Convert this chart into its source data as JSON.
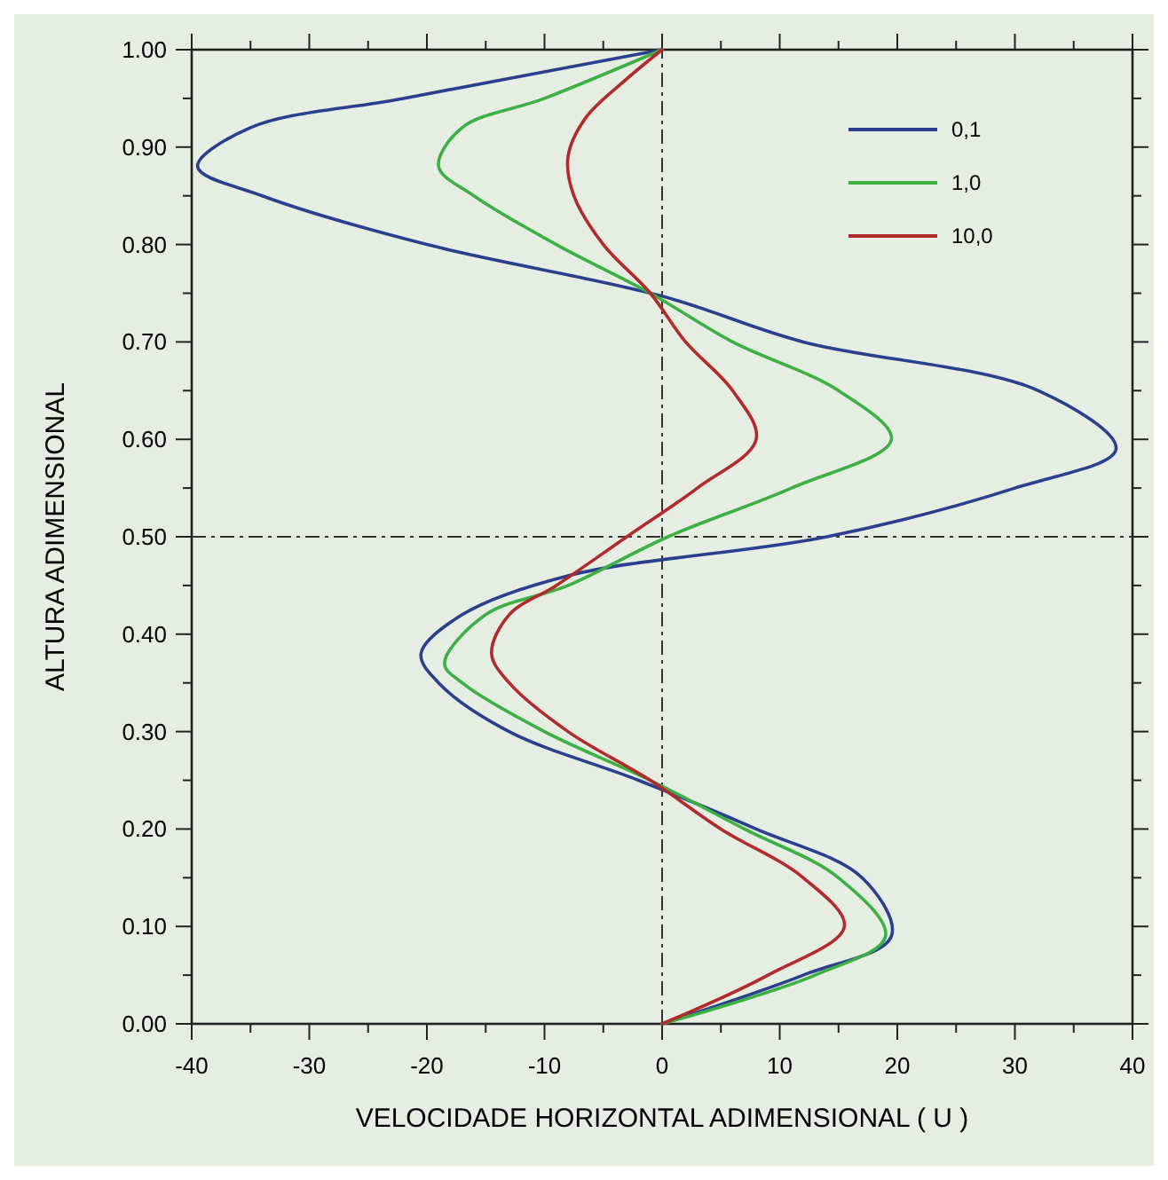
{
  "chart_data": {
    "type": "line",
    "xlabel": "VELOCIDADE HORIZONTAL ADIMENSIONAL  ( U )",
    "ylabel": "ALTURA ADIMENSIONAL",
    "xlim": [
      -40,
      40
    ],
    "ylim": [
      0,
      1
    ],
    "xticks": [
      -40,
      {
        "value": -35,
        "label": null
      },
      -30,
      {
        "value": -25,
        "label": null
      },
      -20,
      {
        "value": -15,
        "label": null
      },
      -10,
      {
        "value": -5,
        "label": null
      },
      0,
      {
        "value": 5,
        "label": null
      },
      10,
      {
        "value": 15,
        "label": null
      },
      20,
      {
        "value": 25,
        "label": null
      },
      30,
      {
        "value": 35,
        "label": null
      },
      40
    ],
    "yticks": [
      {
        "value": 0,
        "label": "0.00"
      },
      {
        "value": 0.05,
        "label": null
      },
      {
        "value": 0.1,
        "label": "0.10"
      },
      {
        "value": 0.15,
        "label": null
      },
      {
        "value": 0.2,
        "label": "0.20"
      },
      {
        "value": 0.25,
        "label": null
      },
      {
        "value": 0.3,
        "label": "0.30"
      },
      {
        "value": 0.35,
        "label": null
      },
      {
        "value": 0.4,
        "label": "0.40"
      },
      {
        "value": 0.45,
        "label": null
      },
      {
        "value": 0.5,
        "label": "0.50"
      },
      {
        "value": 0.55,
        "label": null
      },
      {
        "value": 0.6,
        "label": "0.60"
      },
      {
        "value": 0.65,
        "label": null
      },
      {
        "value": 0.7,
        "label": "0.70"
      },
      {
        "value": 0.75,
        "label": null
      },
      {
        "value": 0.8,
        "label": "0.80"
      },
      {
        "value": 0.85,
        "label": null
      },
      {
        "value": 0.9,
        "label": "0.90"
      },
      {
        "value": 0.95,
        "label": null
      },
      {
        "value": 1,
        "label": "1.00"
      }
    ],
    "grid": false,
    "legend": "top right",
    "marker": "none",
    "line_style": "solid",
    "ref_lines": [
      {
        "axis": "x",
        "value": 0,
        "line_style": "dashed"
      },
      {
        "axis": "y",
        "value": 0.5,
        "line_style": "dashed"
      }
    ],
    "series": [
      {
        "name": "0,1",
        "color": "#2b3f8f",
        "x": [
          0,
          12,
          19.5,
          17,
          8,
          -2,
          -13,
          -19,
          -20.5,
          -17,
          -8,
          14,
          30,
          38.6,
          32,
          12,
          0,
          -20,
          -34,
          -39.5,
          -35,
          -22,
          0
        ],
        "values": [
          0,
          0.05,
          0.09,
          0.15,
          0.2,
          0.25,
          0.3,
          0.35,
          0.38,
          0.42,
          0.46,
          0.5,
          0.55,
          0.59,
          0.65,
          0.7,
          0.747,
          0.8,
          0.85,
          0.88,
          0.92,
          0.95,
          1
        ]
      },
      {
        "name": "1,0",
        "color": "#3cb043",
        "x": [
          0,
          13,
          19,
          15,
          7,
          -1,
          -10,
          -17,
          -18.5,
          -15,
          -8,
          0.5,
          11,
          19.5,
          15,
          6,
          -1,
          -9,
          -16,
          -19,
          -17,
          -10,
          0
        ],
        "values": [
          0,
          0.05,
          0.09,
          0.15,
          0.2,
          0.25,
          0.3,
          0.35,
          0.37,
          0.42,
          0.45,
          0.5,
          0.55,
          0.6,
          0.65,
          0.7,
          0.75,
          0.8,
          0.85,
          0.88,
          0.92,
          0.95,
          1
        ]
      },
      {
        "name": "10,0",
        "color": "#b22a2a",
        "x": [
          0,
          9,
          15.5,
          12,
          5,
          -1,
          -8,
          -13,
          -14.5,
          -13,
          -9,
          -3,
          3,
          8,
          6,
          2,
          -1,
          -5,
          -7.5,
          -8,
          -6.5,
          -3,
          0
        ],
        "values": [
          0,
          0.05,
          0.1,
          0.15,
          0.2,
          0.25,
          0.3,
          0.35,
          0.38,
          0.42,
          0.45,
          0.5,
          0.55,
          0.6,
          0.65,
          0.7,
          0.75,
          0.8,
          0.85,
          0.89,
          0.93,
          0.97,
          1
        ]
      }
    ]
  }
}
